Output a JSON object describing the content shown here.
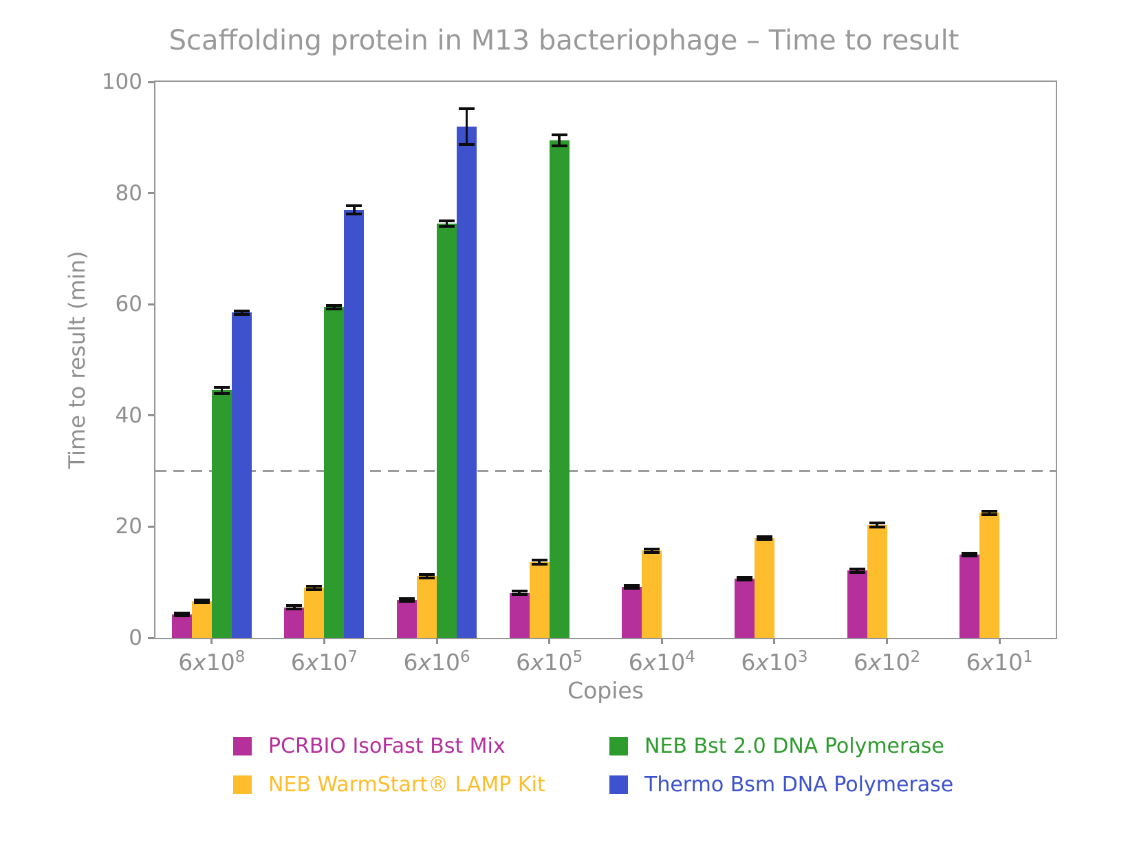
{
  "chart_data": {
    "type": "bar",
    "title": "Scaffolding protein in M13 bacteriophage – Time to result",
    "xlabel": "Copies",
    "ylabel": "Time to result (min)",
    "ylim": [
      0,
      100
    ],
    "yticks": [
      0,
      20,
      40,
      60,
      80,
      100
    ],
    "grid": false,
    "legend_position": "bottom",
    "legend_order": [
      0,
      2,
      1,
      3
    ],
    "threshold_line": {
      "y": 30,
      "style": "dashed",
      "color": "#9c9c9c"
    },
    "categories": [
      "6x10^8",
      "6x10^7",
      "6x10^6",
      "6x10^5",
      "6x10^4",
      "6x10^3",
      "6x10^2",
      "6x10^1"
    ],
    "series": [
      {
        "name": "PCRBIO IsoFast Bst Mix",
        "color": "#b5309b",
        "values": [
          4.2,
          5.5,
          6.8,
          8.1,
          9.2,
          10.6,
          12.1,
          15.0
        ],
        "errors": [
          0.25,
          0.3,
          0.3,
          0.35,
          0.25,
          0.25,
          0.3,
          0.25
        ]
      },
      {
        "name": "NEB WarmStart® LAMP Kit",
        "color": "#fdbd2c",
        "values": [
          6.6,
          9.0,
          11.1,
          13.6,
          15.7,
          18.0,
          20.3,
          22.5
        ],
        "errors": [
          0.25,
          0.3,
          0.3,
          0.35,
          0.3,
          0.25,
          0.35,
          0.3
        ]
      },
      {
        "name": "NEB Bst 2.0 DNA Polymerase",
        "color": "#2e9b2e",
        "values": [
          44.5,
          59.5,
          74.5,
          89.5,
          null,
          null,
          null,
          null
        ],
        "errors": [
          0.6,
          0.3,
          0.45,
          1.0,
          null,
          null,
          null,
          null
        ]
      },
      {
        "name": "Thermo Bsm DNA Polymerase",
        "color": "#3d52cc",
        "values": [
          58.5,
          77.0,
          92.0,
          null,
          null,
          null,
          null,
          null
        ],
        "errors": [
          0.35,
          0.7,
          3.2,
          null,
          null,
          null,
          null,
          null
        ]
      }
    ]
  }
}
